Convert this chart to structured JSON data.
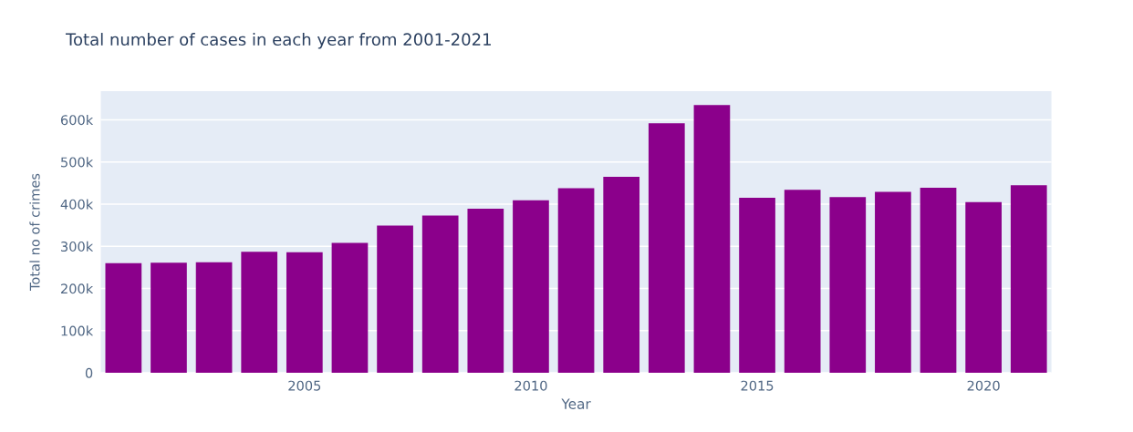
{
  "chart_data": {
    "type": "bar",
    "title": "Total number of cases in each year from 2001-2021",
    "xlabel": "Year",
    "ylabel": "Total no of crimes",
    "x": [
      2001,
      2002,
      2003,
      2004,
      2005,
      2006,
      2007,
      2008,
      2009,
      2010,
      2011,
      2012,
      2013,
      2014,
      2015,
      2016,
      2017,
      2018,
      2019,
      2020,
      2021
    ],
    "values": [
      260000,
      261000,
      262000,
      287000,
      286000,
      308000,
      349000,
      373000,
      389000,
      409000,
      438000,
      465000,
      592000,
      635000,
      415000,
      434000,
      417000,
      429000,
      439000,
      405000,
      445000
    ],
    "color": "#8b008b",
    "xlim": [
      2000.5,
      2021.5
    ],
    "xticks": [
      2005,
      2010,
      2015,
      2020
    ],
    "ylim": [
      0,
      668000
    ],
    "yticks": [
      0,
      {
        "value": 100000,
        "label": "100k"
      },
      {
        "value": 200000,
        "label": "200k"
      },
      {
        "value": 300000,
        "label": "300k"
      },
      {
        "value": 400000,
        "label": "400k"
      },
      {
        "value": 500000,
        "label": "500k"
      },
      {
        "value": 600000,
        "label": "600k"
      }
    ],
    "grid": "y"
  }
}
